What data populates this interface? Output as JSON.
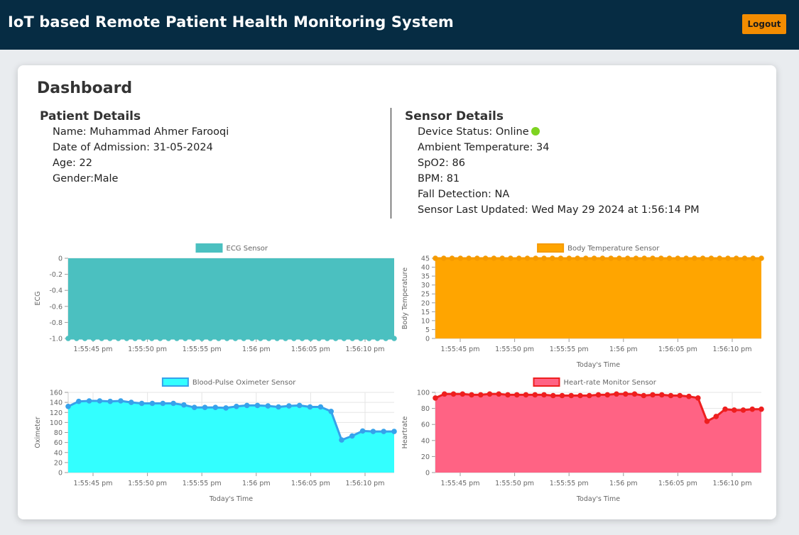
{
  "header": {
    "title": "IoT based Remote Patient Health Monitoring System",
    "logout_label": "Logout",
    "bg_color": "#062c43",
    "logout_color": "#f28c00"
  },
  "dashboard": {
    "title": "Dashboard"
  },
  "patient": {
    "section_title": "Patient Details",
    "name": "Name: Muhammad Ahmer Farooqi",
    "admission": "Date of Admission: 31-05-2024",
    "age": "Age: 22",
    "gender": "Gender:Male"
  },
  "sensor": {
    "section_title": "Sensor Details",
    "device_status": "Device Status: Online",
    "status_icon": "online-status-dot",
    "status_color": "#7ed321",
    "ambient_temperature": "Ambient Temperature: 34",
    "spo2": "SpO2: 86",
    "bpm": "BPM: 81",
    "fall_detection": "Fall Detection: NA",
    "last_updated": "Sensor Last Updated: Wed May 29 2024 at 1:56:14 PM"
  },
  "chart_data": [
    {
      "id": "ecg",
      "type": "area",
      "title": "ECG Sensor",
      "xlabel": "",
      "ylabel": "ECG",
      "x_tick_labels": [
        "1:55:45 pm",
        "1:55:50 pm",
        "1:55:55 pm",
        "1:56 pm",
        "1:56:05 pm",
        "1:56:10 pm"
      ],
      "y_ticks": [
        "0",
        "-0.2",
        "-0.4",
        "-0.6",
        "-0.8",
        "-1.0"
      ],
      "ylim": [
        -1.0,
        0
      ],
      "fill": "#4bc0c0",
      "line": "#4bc0c0",
      "legend": "top",
      "series": [
        {
          "name": "ECG Sensor",
          "values": [
            -1,
            -1,
            -1,
            -1,
            -1,
            -1,
            -1,
            -1,
            -1,
            -1,
            -1,
            -1,
            -1,
            -1,
            -1,
            -1,
            -1,
            -1,
            -1,
            -1,
            -1,
            -1,
            -1,
            -1,
            -1,
            -1,
            -1,
            -1,
            -1,
            -1,
            -1,
            -1,
            -1,
            -1,
            -1,
            -1,
            -1,
            -1,
            -1,
            -1
          ]
        }
      ]
    },
    {
      "id": "body-temp",
      "type": "area",
      "title": "Body Temperature Sensor",
      "xlabel": "Today's Time",
      "ylabel": "Body Temperature",
      "x_tick_labels": [
        "1:55:45 pm",
        "1:55:50 pm",
        "1:55:55 pm",
        "1:56 pm",
        "1:56:05 pm",
        "1:56:10 pm"
      ],
      "y_ticks": [
        "45",
        "40",
        "35",
        "30",
        "25",
        "20",
        "15",
        "10",
        "5",
        "0"
      ],
      "ylim": [
        0,
        45
      ],
      "fill": "#ffa500",
      "line": "#f59a00",
      "legend": "top",
      "series": [
        {
          "name": "Body Temperature Sensor",
          "values": [
            45,
            45,
            45,
            45,
            45,
            45,
            45,
            45,
            45,
            45,
            45,
            45,
            45,
            45,
            45,
            45,
            45,
            45,
            45,
            45,
            45,
            45,
            45,
            45,
            45,
            45,
            45,
            45,
            45,
            45,
            45,
            45,
            45,
            45,
            45,
            45,
            45,
            45,
            45,
            45
          ]
        }
      ]
    },
    {
      "id": "oximeter",
      "type": "area",
      "title": "Blood-Pulse Oximeter Sensor",
      "xlabel": "Today's Time",
      "ylabel": "Oximeter",
      "x_tick_labels": [
        "1:55:45 pm",
        "1:55:50 pm",
        "1:55:55 pm",
        "1:56 pm",
        "1:56:05 pm",
        "1:56:10 pm"
      ],
      "y_ticks": [
        "160",
        "140",
        "120",
        "100",
        "80",
        "60",
        "40",
        "20",
        "0"
      ],
      "ylim": [
        0,
        160
      ],
      "fill": "#33ffff",
      "line": "#36a2eb",
      "legend": "top",
      "series": [
        {
          "name": "Blood-Pulse Oximeter Sensor",
          "values": [
            132,
            142,
            143,
            143,
            142,
            143,
            140,
            138,
            138,
            138,
            138,
            135,
            130,
            130,
            130,
            129,
            132,
            134,
            134,
            133,
            131,
            133,
            134,
            131,
            131,
            122,
            65,
            73,
            83,
            82,
            82,
            82
          ]
        }
      ]
    },
    {
      "id": "heartrate",
      "type": "area",
      "title": "Heart-rate Monitor Sensor",
      "xlabel": "Today's Time",
      "ylabel": "Heartrate",
      "x_tick_labels": [
        "1:55:45 pm",
        "1:55:50 pm",
        "1:55:55 pm",
        "1:56 pm",
        "1:56:05 pm",
        "1:56:10 pm"
      ],
      "y_ticks": [
        "100",
        "80",
        "60",
        "40",
        "20",
        "0"
      ],
      "ylim": [
        0,
        100
      ],
      "fill": "#ff6384",
      "line": "#ee1f1f",
      "legend": "top",
      "series": [
        {
          "name": "Heart-rate Monitor Sensor",
          "values": [
            93,
            98,
            98,
            98,
            97,
            97,
            98,
            98,
            97,
            97,
            97,
            97,
            97,
            96,
            96,
            96,
            96,
            96,
            97,
            97,
            98,
            98,
            98,
            96,
            97,
            97,
            96,
            96,
            95,
            93,
            64,
            70,
            79,
            78,
            78,
            79,
            79
          ]
        }
      ]
    }
  ]
}
